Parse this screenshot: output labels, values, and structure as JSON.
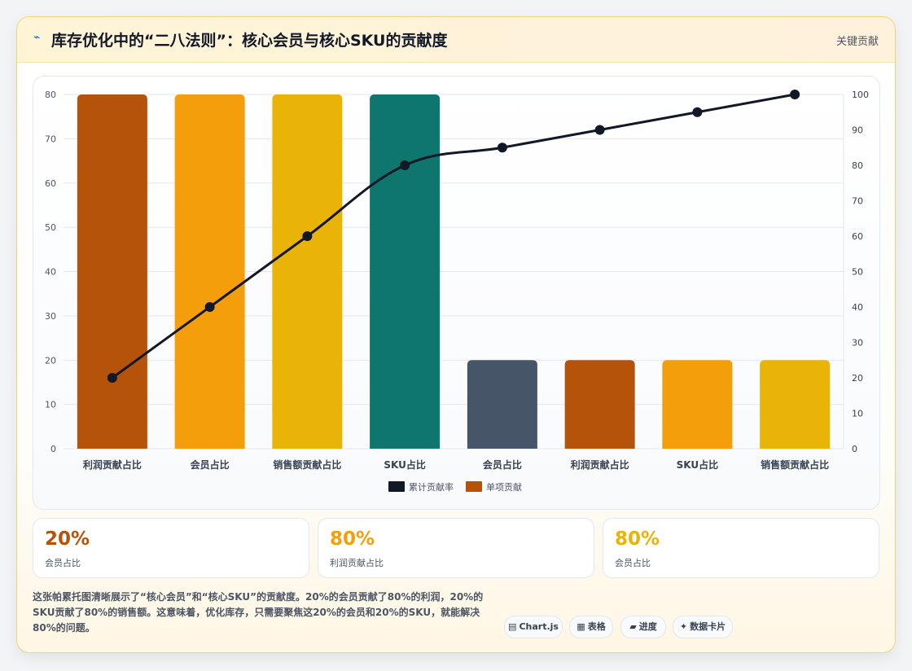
{
  "header": {
    "icon": "lightning-icon",
    "title": "库存优化中的“二八法则”：核心会员与核心SKU的贡献度",
    "link": "关键贡献"
  },
  "chart_data": {
    "type": "bar",
    "categories": [
      "利润贡献占比",
      "会员占比",
      "销售额贡献占比",
      "SKU占比",
      "会员占比",
      "利润贡献占比",
      "SKU占比",
      "销售额贡献占比"
    ],
    "series": [
      {
        "name": "单项贡献",
        "type": "bar",
        "axis": "left",
        "values": [
          80,
          80,
          80,
          80,
          20,
          20,
          20,
          20
        ],
        "colors": [
          "#b45309",
          "#f59e0b",
          "#eab308",
          "#0f766e",
          "#475569",
          "#b45309",
          "#f59e0b",
          "#eab308"
        ]
      },
      {
        "name": "累计贡献率",
        "type": "line",
        "axis": "right",
        "values": [
          20,
          40,
          60,
          80,
          85,
          90,
          95,
          100
        ],
        "color": "#111827"
      }
    ],
    "yleft": {
      "min": 0,
      "max": 80,
      "ticks": [
        0,
        10,
        20,
        30,
        40,
        50,
        60,
        70,
        80
      ]
    },
    "yright": {
      "min": 0,
      "max": 100,
      "ticks": [
        0,
        10,
        20,
        30,
        40,
        50,
        60,
        70,
        80,
        90,
        100
      ]
    },
    "legend": "bottom",
    "grid": true
  },
  "stats": [
    {
      "value": "20%",
      "label": "会员占比",
      "color": "#b45309"
    },
    {
      "value": "80%",
      "label": "利润贡献占比",
      "color": "#f59e0b"
    },
    {
      "value": "80%",
      "label": "会员占比",
      "color": "#eab308"
    }
  ],
  "description": "这张帕累托图清晰展示了“核心会员”和“核心SKU”的贡献度。20%的会员贡献了80%的利润，20%的SKU贡献了80%的销售额。这意味着，优化库存，只需要聚焦这20%的会员和20%的SKU，就能解决80%的问题。",
  "chips": [
    {
      "icon": "chart-icon",
      "glyph": "▤",
      "label": "Chart.js"
    },
    {
      "icon": "table-icon",
      "glyph": "▦",
      "label": "表格"
    },
    {
      "icon": "progress-icon",
      "glyph": "▰",
      "label": "进度"
    },
    {
      "icon": "sparkle-icon",
      "glyph": "✦",
      "label": "数据卡片"
    }
  ]
}
